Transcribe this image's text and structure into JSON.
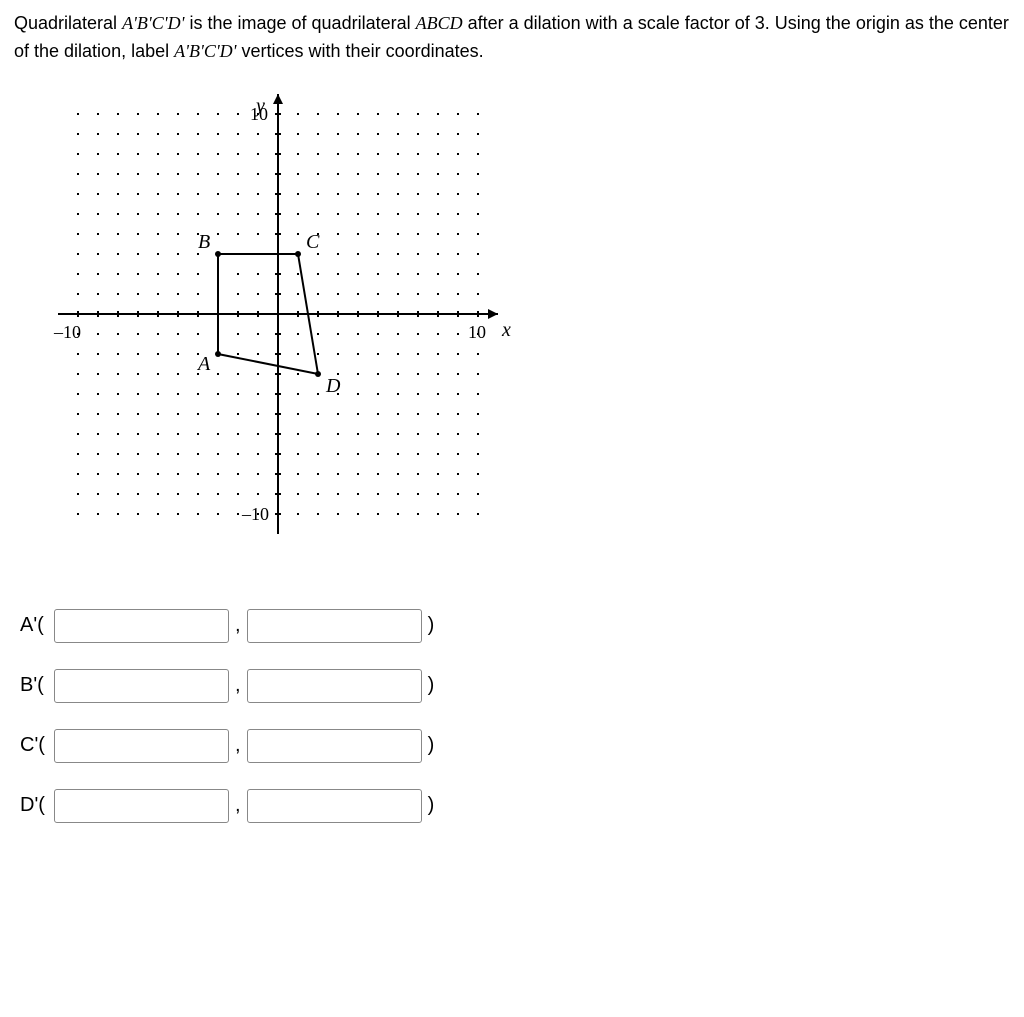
{
  "question": {
    "part1": "Quadrilateral ",
    "quad1": "A'B'C'D'",
    "part2": " is the image of quadrilateral ",
    "abcd": "ABCD",
    "part3": " after a dilation with a scale factor of 3. Using the origin as the center of the dilation, label ",
    "quad2": "A'B'C'D'",
    "part4": " vertices with their coordinates."
  },
  "graph": {
    "range": {
      "xmin": -11,
      "xmax": 11,
      "ymin": -11,
      "ymax": 11
    },
    "tick_label_pos": "10",
    "tick_label_neg": "–10",
    "xlabel": "x",
    "ylabel": "y",
    "points": {
      "A": {
        "x": -3,
        "y": -2,
        "label": "A"
      },
      "B": {
        "x": -3,
        "y": 3,
        "label": "B"
      },
      "C": {
        "x": 1,
        "y": 3,
        "label": "C"
      },
      "D": {
        "x": 2,
        "y": -3,
        "label": "D"
      }
    },
    "polygon_order": [
      "A",
      "B",
      "C",
      "D"
    ],
    "stroke": "#000000",
    "grid_dot": "#000000",
    "bg": "#ffffff",
    "axis_font": "italic 18px 'Times New Roman', serif",
    "label_font": "italic 20px 'Times New Roman', serif",
    "tick_font": "16px 'Times New Roman', serif"
  },
  "answers": [
    {
      "label": "A'(",
      "x": "",
      "y": "",
      "close": ")"
    },
    {
      "label": "B'(",
      "x": "",
      "y": "",
      "close": ")"
    },
    {
      "label": "C'(",
      "x": "",
      "y": "",
      "close": ")"
    },
    {
      "label": "D'(",
      "x": "",
      "y": "",
      "close": ")"
    }
  ],
  "comma": ","
}
